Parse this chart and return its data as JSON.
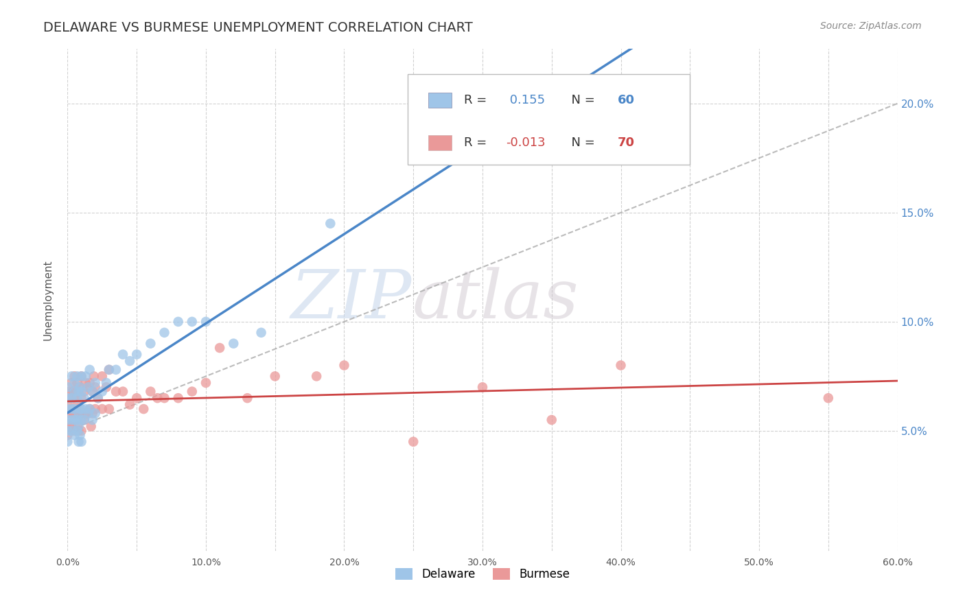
{
  "title": "DELAWARE VS BURMESE UNEMPLOYMENT CORRELATION CHART",
  "source_text": "Source: ZipAtlas.com",
  "ylabel": "Unemployment",
  "xlim": [
    0.0,
    0.6
  ],
  "ylim": [
    -0.005,
    0.225
  ],
  "xtick_labels": [
    "0.0%",
    "",
    "10.0%",
    "",
    "20.0%",
    "",
    "30.0%",
    "",
    "40.0%",
    "",
    "50.0%",
    "",
    "60.0%"
  ],
  "xtick_vals": [
    0.0,
    0.05,
    0.1,
    0.15,
    0.2,
    0.25,
    0.3,
    0.35,
    0.4,
    0.45,
    0.5,
    0.55,
    0.6
  ],
  "ytick_labels": [
    "5.0%",
    "10.0%",
    "15.0%",
    "20.0%"
  ],
  "ytick_vals": [
    0.05,
    0.1,
    0.15,
    0.2
  ],
  "delaware_R": 0.155,
  "delaware_N": 60,
  "burmese_R": -0.013,
  "burmese_N": 70,
  "delaware_color": "#9fc5e8",
  "burmese_color": "#ea9999",
  "delaware_line_color": "#4a86c8",
  "burmese_line_color": "#cc4444",
  "trendline_color": "#aaaaaa",
  "watermark_zip": "ZIP",
  "watermark_atlas": "atlas",
  "background_color": "#ffffff",
  "grid_color": "#cccccc",
  "title_color": "#333333",
  "source_color": "#888888",
  "right_axis_color": "#4a86c8",
  "delaware_scatter_x": [
    0.0,
    0.0,
    0.0,
    0.0,
    0.0,
    0.0,
    0.003,
    0.003,
    0.003,
    0.003,
    0.003,
    0.005,
    0.005,
    0.005,
    0.005,
    0.005,
    0.007,
    0.007,
    0.007,
    0.007,
    0.008,
    0.008,
    0.008,
    0.008,
    0.009,
    0.009,
    0.009,
    0.01,
    0.01,
    0.01,
    0.01,
    0.01,
    0.012,
    0.012,
    0.013,
    0.013,
    0.015,
    0.015,
    0.016,
    0.016,
    0.018,
    0.018,
    0.02,
    0.02,
    0.022,
    0.025,
    0.028,
    0.03,
    0.035,
    0.04,
    0.045,
    0.05,
    0.06,
    0.07,
    0.08,
    0.09,
    0.1,
    0.12,
    0.14,
    0.19
  ],
  "delaware_scatter_y": [
    0.07,
    0.065,
    0.06,
    0.055,
    0.05,
    0.045,
    0.075,
    0.065,
    0.06,
    0.055,
    0.05,
    0.072,
    0.068,
    0.06,
    0.055,
    0.048,
    0.075,
    0.065,
    0.055,
    0.05,
    0.068,
    0.058,
    0.052,
    0.045,
    0.07,
    0.06,
    0.048,
    0.075,
    0.068,
    0.06,
    0.055,
    0.045,
    0.065,
    0.055,
    0.075,
    0.06,
    0.07,
    0.058,
    0.078,
    0.06,
    0.068,
    0.055,
    0.072,
    0.058,
    0.065,
    0.068,
    0.072,
    0.078,
    0.078,
    0.085,
    0.082,
    0.085,
    0.09,
    0.095,
    0.1,
    0.1,
    0.1,
    0.09,
    0.095,
    0.145
  ],
  "burmese_scatter_x": [
    0.0,
    0.0,
    0.0,
    0.0,
    0.0,
    0.003,
    0.003,
    0.003,
    0.003,
    0.004,
    0.004,
    0.005,
    0.005,
    0.005,
    0.005,
    0.006,
    0.006,
    0.007,
    0.007,
    0.007,
    0.008,
    0.008,
    0.008,
    0.009,
    0.009,
    0.01,
    0.01,
    0.01,
    0.01,
    0.012,
    0.012,
    0.013,
    0.013,
    0.015,
    0.015,
    0.016,
    0.016,
    0.017,
    0.018,
    0.018,
    0.019,
    0.02,
    0.02,
    0.022,
    0.025,
    0.025,
    0.028,
    0.03,
    0.03,
    0.035,
    0.04,
    0.045,
    0.05,
    0.055,
    0.06,
    0.065,
    0.07,
    0.08,
    0.09,
    0.1,
    0.11,
    0.13,
    0.15,
    0.18,
    0.2,
    0.25,
    0.3,
    0.35,
    0.4,
    0.55
  ],
  "burmese_scatter_y": [
    0.068,
    0.062,
    0.058,
    0.053,
    0.048,
    0.072,
    0.065,
    0.06,
    0.052,
    0.068,
    0.058,
    0.075,
    0.065,
    0.058,
    0.05,
    0.068,
    0.058,
    0.072,
    0.062,
    0.052,
    0.068,
    0.06,
    0.05,
    0.07,
    0.058,
    0.075,
    0.065,
    0.058,
    0.05,
    0.068,
    0.055,
    0.072,
    0.058,
    0.07,
    0.058,
    0.072,
    0.06,
    0.052,
    0.068,
    0.058,
    0.075,
    0.07,
    0.06,
    0.065,
    0.075,
    0.06,
    0.07,
    0.078,
    0.06,
    0.068,
    0.068,
    0.062,
    0.065,
    0.06,
    0.068,
    0.065,
    0.065,
    0.065,
    0.068,
    0.072,
    0.088,
    0.065,
    0.075,
    0.075,
    0.08,
    0.045,
    0.07,
    0.055,
    0.08,
    0.065
  ],
  "trendline_x0": 0.0,
  "trendline_y0": 0.05,
  "trendline_x1": 0.6,
  "trendline_y1": 0.2
}
